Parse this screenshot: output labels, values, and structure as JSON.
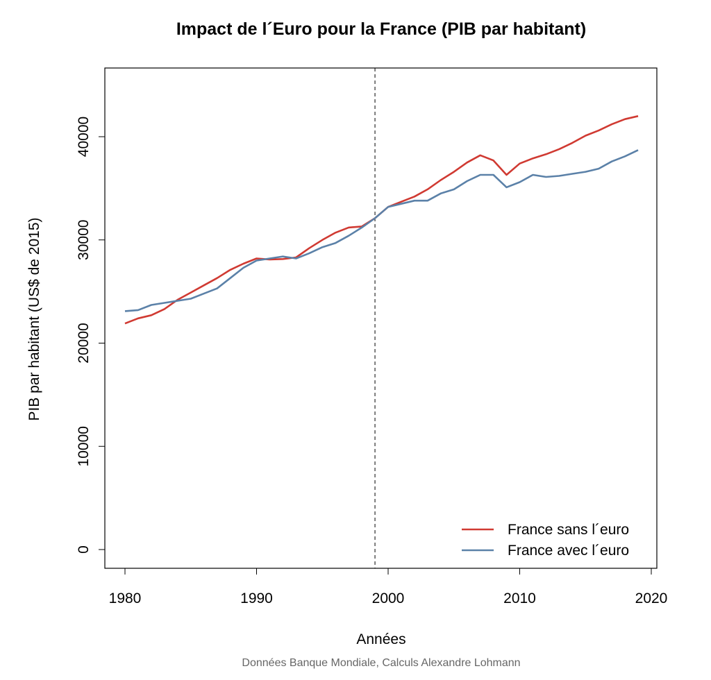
{
  "chart_data": {
    "type": "line",
    "title": "Impact de l´Euro pour la France (PIB par habitant)",
    "xlabel": "Années",
    "ylabel": "PIB par habitant (US$ de 2015)",
    "note": "Données Banque Mondiale, Calculs Alexandre Lohmann",
    "xlim": [
      1980,
      2020
    ],
    "ylim": [
      0,
      45000
    ],
    "x_ticks": [
      1980,
      1990,
      2000,
      2010,
      2020
    ],
    "y_ticks": [
      0,
      10000,
      20000,
      30000,
      40000
    ],
    "grid": false,
    "legend_position": "bottom-right",
    "reference_line": {
      "x": 1999,
      "style": "dashed"
    },
    "x": [
      1980,
      1981,
      1982,
      1983,
      1984,
      1985,
      1986,
      1987,
      1988,
      1989,
      1990,
      1991,
      1992,
      1993,
      1994,
      1995,
      1996,
      1997,
      1998,
      1999,
      2000,
      2001,
      2002,
      2003,
      2004,
      2005,
      2006,
      2007,
      2008,
      2009,
      2010,
      2011,
      2012,
      2013,
      2014,
      2015,
      2016,
      2017,
      2018,
      2019
    ],
    "series": [
      {
        "name": "France sans l´euro",
        "color": "#d03a32",
        "values": [
          21900,
          22400,
          22700,
          23300,
          24200,
          24900,
          25600,
          26300,
          27100,
          27700,
          28200,
          28100,
          28150,
          28300,
          29200,
          30000,
          30700,
          31200,
          31300,
          32100,
          33200,
          33700,
          34200,
          34900,
          35800,
          36600,
          37500,
          38200,
          37700,
          36300,
          37400,
          37900,
          38300,
          38800,
          39400,
          40100,
          40600,
          41200,
          41700,
          42000
        ]
      },
      {
        "name": "France avec l´euro",
        "color": "#5b81a8",
        "values": [
          23100,
          23200,
          23700,
          23900,
          24100,
          24300,
          24800,
          25300,
          26300,
          27300,
          28000,
          28200,
          28400,
          28200,
          28700,
          29300,
          29700,
          30400,
          31200,
          32100,
          33200,
          33500,
          33800,
          33800,
          34500,
          34900,
          35700,
          36300,
          36300,
          35100,
          35600,
          36300,
          36100,
          36200,
          36400,
          36600,
          36900,
          37600,
          38100,
          38700
        ]
      }
    ]
  }
}
